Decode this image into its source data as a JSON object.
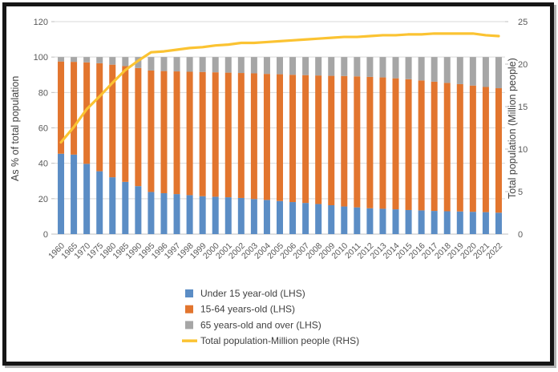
{
  "chart_data": {
    "type": "bar",
    "subtype": "stacked-bar-with-line",
    "title": "",
    "categories": [
      "1960",
      "1965",
      "1970",
      "1975",
      "1980",
      "1985",
      "1990",
      "1995",
      "1996",
      "1997",
      "1998",
      "1999",
      "2000",
      "2001",
      "2002",
      "2003",
      "2004",
      "2005",
      "2006",
      "2007",
      "2008",
      "2009",
      "2010",
      "2011",
      "2012",
      "2013",
      "2014",
      "2015",
      "2016",
      "2017",
      "2018",
      "2019",
      "2020",
      "2021",
      "2022"
    ],
    "series": [
      {
        "name": "Under 15 year-old (LHS)",
        "type": "bar",
        "stacked": true,
        "axis": "left",
        "color": "#5B8DC5",
        "values": [
          45.4,
          44.9,
          39.7,
          35.5,
          32.1,
          29.5,
          27.1,
          23.8,
          23.1,
          22.6,
          22.0,
          21.4,
          21.1,
          20.8,
          20.4,
          19.8,
          19.3,
          18.7,
          18.1,
          17.6,
          17.0,
          16.3,
          15.6,
          15.1,
          14.6,
          14.3,
          14.0,
          13.6,
          13.4,
          13.1,
          12.9,
          12.8,
          12.6,
          12.4,
          12.1
        ]
      },
      {
        "name": "15-64 years-old (LHS)",
        "type": "bar",
        "stacked": true,
        "axis": "left",
        "color": "#E2752E",
        "values": [
          52.1,
          52.4,
          57.3,
          61.0,
          63.6,
          65.4,
          66.7,
          68.6,
          69.0,
          69.3,
          69.7,
          70.2,
          70.3,
          70.4,
          70.6,
          71.0,
          71.2,
          71.6,
          71.9,
          72.2,
          72.6,
          73.1,
          73.7,
          74.0,
          74.2,
          74.2,
          74.0,
          73.9,
          73.4,
          73.0,
          72.5,
          71.9,
          71.3,
          70.7,
          70.3
        ]
      },
      {
        "name": "65 years-old and over (LHS)",
        "type": "bar",
        "stacked": true,
        "axis": "left",
        "color": "#A6A6A6",
        "values": [
          2.5,
          2.7,
          3.0,
          3.5,
          4.3,
          5.1,
          6.2,
          7.6,
          7.9,
          8.1,
          8.3,
          8.4,
          8.6,
          8.8,
          9.0,
          9.2,
          9.5,
          9.7,
          10.0,
          10.2,
          10.4,
          10.6,
          10.7,
          10.9,
          11.2,
          11.5,
          12.0,
          12.5,
          13.2,
          13.9,
          14.6,
          15.3,
          16.1,
          16.9,
          17.6
        ]
      },
      {
        "name": "Total population-Million people (RHS)",
        "type": "line",
        "stacked": false,
        "axis": "right",
        "color": "#FBC332",
        "values": [
          10.8,
          12.6,
          14.7,
          16.2,
          17.8,
          19.3,
          20.4,
          21.4,
          21.5,
          21.7,
          21.9,
          22.0,
          22.2,
          22.3,
          22.5,
          22.5,
          22.6,
          22.7,
          22.8,
          22.9,
          23.0,
          23.1,
          23.2,
          23.2,
          23.3,
          23.4,
          23.4,
          23.5,
          23.5,
          23.6,
          23.6,
          23.6,
          23.6,
          23.4,
          23.3
        ]
      }
    ],
    "left_axis": {
      "label": "As % of total population",
      "min": 0,
      "max": 120,
      "ticks": [
        0,
        20,
        40,
        60,
        80,
        100,
        120
      ]
    },
    "right_axis": {
      "label": "Total population (Million people)",
      "min": 0,
      "max": 25,
      "ticks": [
        0,
        5,
        10,
        15,
        20,
        25
      ]
    },
    "grid": true,
    "gridline_color": "#D9D9D9",
    "axis_line_color": "#BFBFBF",
    "legend_position": "bottom-center"
  }
}
